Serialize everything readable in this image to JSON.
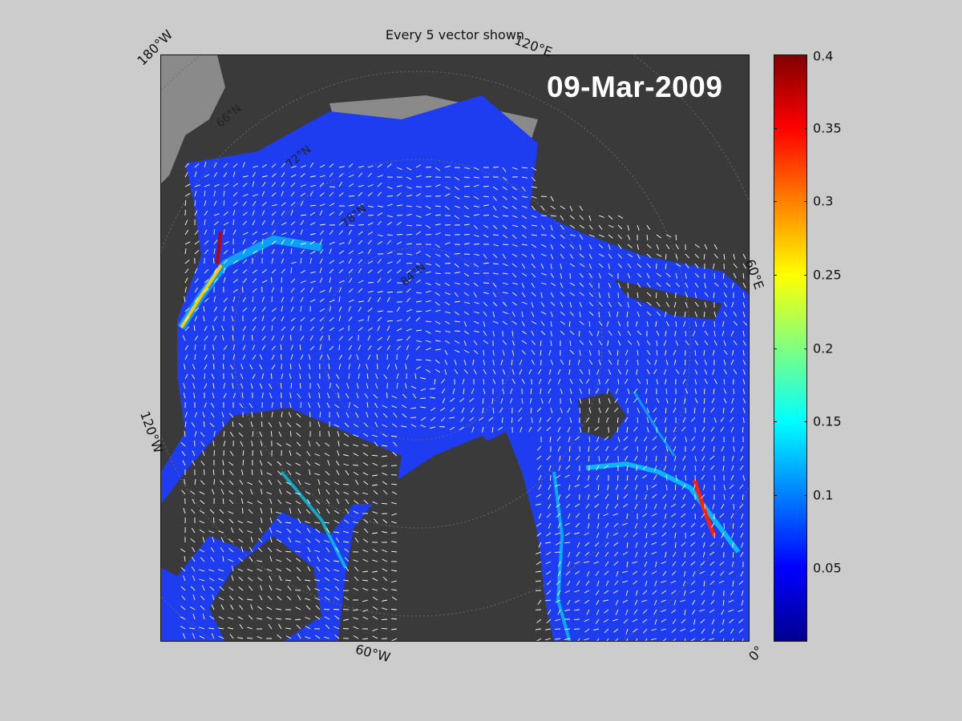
{
  "title": "Every 5 vector shown",
  "date": "09-Mar-2009",
  "longitude_labels": {
    "w180": "180°W",
    "e120": "120°E",
    "e60": "60°E",
    "w120": "120°W",
    "w60": "60°W",
    "zero": "0°"
  },
  "latitude_labels": [
    "66°N",
    "72°N",
    "78°N",
    "84°N"
  ],
  "colorbar": {
    "min": 0,
    "max": 0.4,
    "ticks": [
      "0.4",
      "0.35",
      "0.3",
      "0.25",
      "0.2",
      "0.15",
      "0.1",
      "0.05"
    ],
    "tick_values": [
      0.4,
      0.35,
      0.3,
      0.25,
      0.2,
      0.15,
      0.1,
      0.05
    ],
    "colormap": "jet"
  },
  "colors": {
    "land": "#3a3a3a",
    "coast_shelf": "#8a8a8a",
    "ocean_low": "#1e3cf0",
    "vector": "#ffffff",
    "figure_bg": "#cccccc"
  }
}
